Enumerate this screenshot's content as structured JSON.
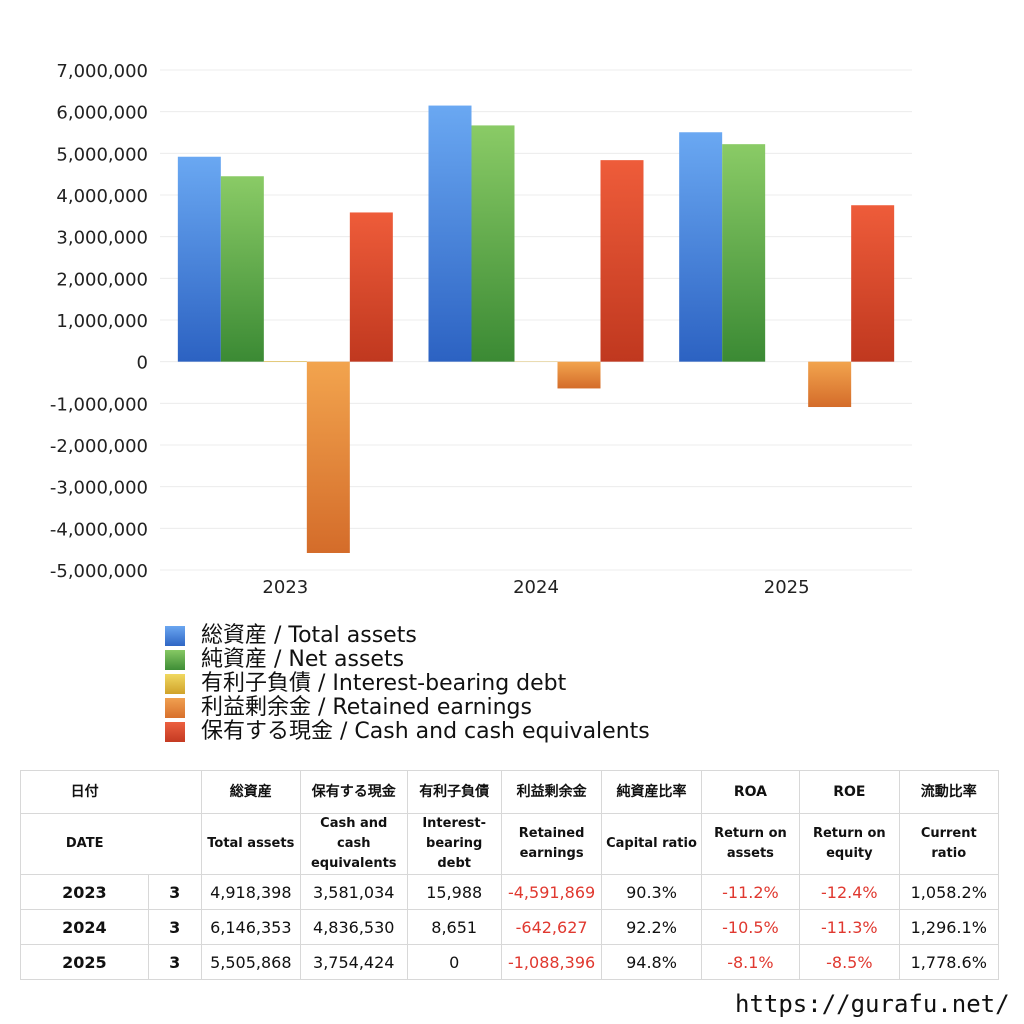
{
  "chart_data": {
    "type": "bar",
    "categories": [
      "2023",
      "2024",
      "2025"
    ],
    "series": [
      {
        "name": "総資産 / Total assets",
        "color": "#3f7fd6",
        "values": [
          4918398,
          6146353,
          5505868
        ]
      },
      {
        "name": "純資産 / Net assets",
        "color": "#5aa345",
        "values": [
          4450000,
          5670000,
          5220000
        ]
      },
      {
        "name": "有利子負債 / Interest-bearing debt",
        "color": "#e2bb3a",
        "values": [
          15988,
          8651,
          0
        ]
      },
      {
        "name": "利益剰余金 / Retained earnings",
        "color": "#e6843a",
        "values": [
          -4591869,
          -642627,
          -1088396
        ]
      },
      {
        "name": "保有する現金 /  Cash and cash equivalents",
        "color": "#d84a2a",
        "values": [
          3581034,
          4836530,
          3754424
        ]
      }
    ],
    "ylim": [
      -5000000,
      7000000
    ],
    "yticks": [
      "7,000,000",
      "6,000,000",
      "5,000,000",
      "4,000,000",
      "3,000,000",
      "2,000,000",
      "1,000,000",
      "0",
      "-1,000,000",
      "-2,000,000",
      "-3,000,000",
      "-4,000,000",
      "-5,000,000"
    ],
    "grid": true,
    "legend": "bottom"
  },
  "table": {
    "headers_jp": [
      "日付",
      "",
      "総資産",
      "保有する現金",
      "有利子負債",
      "利益剰余金",
      "純資産比率",
      "ROA",
      "ROE",
      "流動比率"
    ],
    "headers_en": [
      "DATE",
      "",
      "Total assets",
      "Cash and cash equivalents",
      "Interest-bearing debt",
      "Retained earnings",
      "Capital ratio",
      "Return on assets",
      "Return on equity",
      "Current ratio"
    ],
    "rows": [
      [
        "2023",
        "3",
        "4,918,398",
        "3,581,034",
        "15,988",
        "-4,591,869",
        "90.3%",
        "-11.2%",
        "-12.4%",
        "1,058.2%"
      ],
      [
        "2024",
        "3",
        "6,146,353",
        "4,836,530",
        "8,651",
        "-642,627",
        "92.2%",
        "-10.5%",
        "-11.3%",
        "1,296.1%"
      ],
      [
        "2025",
        "3",
        "5,505,868",
        "3,754,424",
        "0",
        "-1,088,396",
        "94.8%",
        "-8.1%",
        "-8.5%",
        "1,778.6%"
      ]
    ]
  },
  "site_url": "https://gurafu.net/"
}
